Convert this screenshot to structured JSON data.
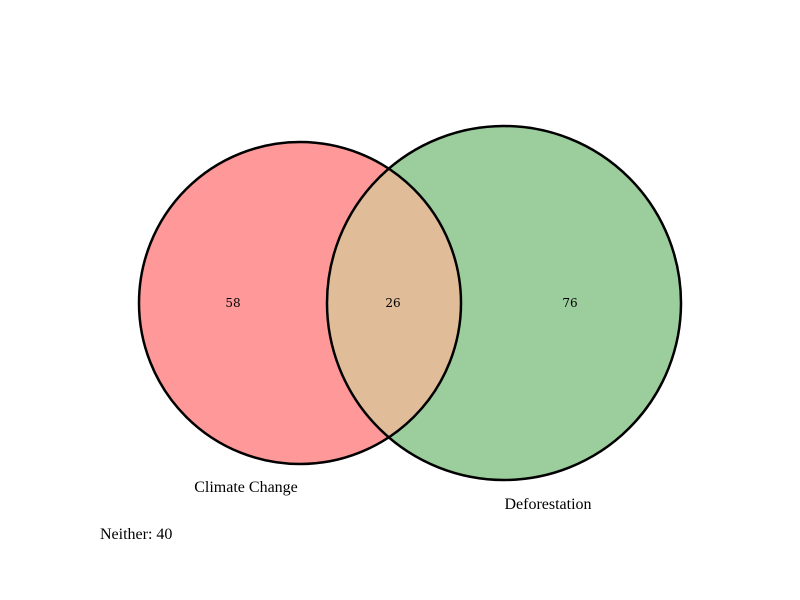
{
  "chart_data": {
    "type": "venn",
    "sets": [
      {
        "name": "Climate Change",
        "only": 58,
        "color": "#ff9999"
      },
      {
        "name": "Deforestation",
        "only": 76,
        "color": "#9ccd9c"
      }
    ],
    "intersection": {
      "value": 26,
      "color": "#e0bc98"
    },
    "neither": {
      "label": "Neither: 40",
      "value": 40
    },
    "outline_color": "#000000"
  }
}
